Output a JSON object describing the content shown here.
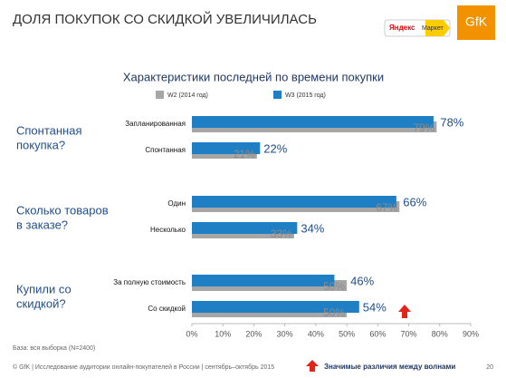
{
  "header": {
    "title": "ДОЛЯ ПОКУПОК СО СКИДКОЙ УВЕЛИЧИЛАСЬ",
    "logo_yandex": "Яндекс",
    "logo_market": "Маркет",
    "logo_gfk": "GfK"
  },
  "chart_data": {
    "type": "bar",
    "orientation": "horizontal",
    "title": "Характеристики последней по времени покупки",
    "groups": [
      {
        "label": [
          "Спонтанная",
          "покупка?"
        ]
      },
      {
        "label": [
          "Сколько товаров",
          "в заказе?"
        ]
      },
      {
        "label": [
          "Купили со",
          "скидкой?"
        ]
      }
    ],
    "categories": [
      "Запланированная",
      "Спонтанная",
      "Один",
      "Несколько",
      "За полную стоимость",
      "Со скидкой"
    ],
    "series": [
      {
        "name": "W2 (2014 год)",
        "color": "#a6a6a6",
        "values": [
          79,
          21,
          67,
          33,
          50,
          50
        ],
        "value_labels": [
          "79%",
          "21%",
          "67%",
          "33%",
          "50%",
          "50%"
        ]
      },
      {
        "name": "W3 (2015 год)",
        "color": "#1f7fc4",
        "values": [
          78,
          22,
          66,
          34,
          46,
          54
        ],
        "value_labels": [
          "78%",
          "22%",
          "66%",
          "34%",
          "46%",
          "54%"
        ]
      }
    ],
    "xlim": [
      0,
      90
    ],
    "xticks": [
      {
        "value": 0,
        "label": "0%"
      },
      {
        "value": 10,
        "label": "10%"
      },
      {
        "value": 20,
        "label": "20%"
      },
      {
        "value": 30,
        "label": "30%"
      },
      {
        "value": 40,
        "label": "40%"
      },
      {
        "value": 50,
        "label": "50%"
      },
      {
        "value": 60,
        "label": "60%"
      },
      {
        "value": 70,
        "label": "70%"
      },
      {
        "value": 80,
        "label": "80%"
      },
      {
        "value": 90,
        "label": "90%"
      }
    ]
  },
  "footer": {
    "base": "База: вся выборка (N=2400)",
    "copyright": "© GfK | Исследование аудитории онлайн-покупателей в России | сентябрь–октябрь 2015",
    "significance": "Значимые различия между волнами",
    "page": "20"
  }
}
